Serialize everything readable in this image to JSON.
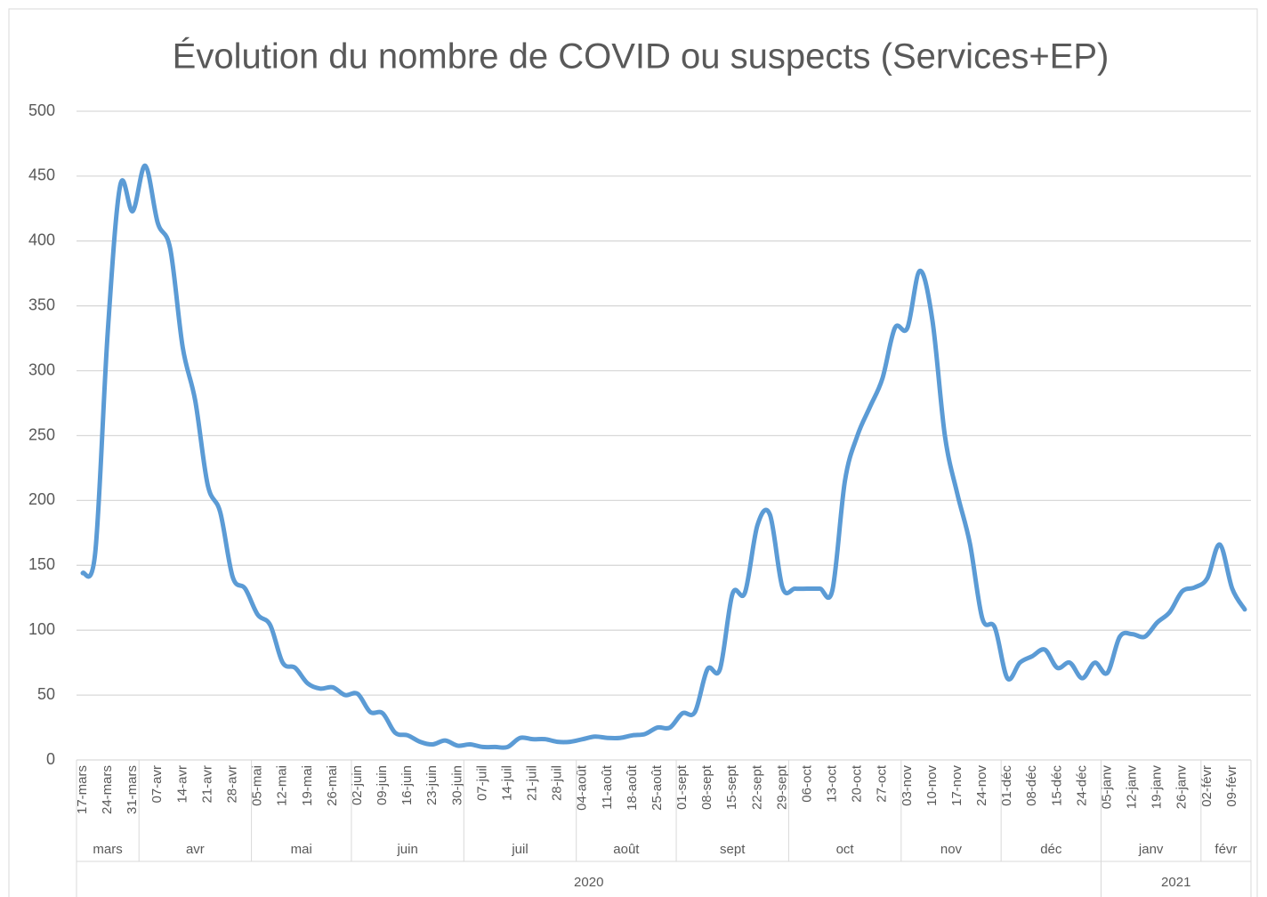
{
  "chart_data": {
    "type": "line",
    "title": "Évolution du nombre de COVID ou suspects (Services+EP)",
    "categories": [
      "17-mars",
      null,
      "24-mars",
      null,
      "31-mars",
      null,
      "07-avr",
      null,
      "14-avr",
      null,
      "21-avr",
      null,
      "28-avr",
      null,
      "05-mai",
      null,
      "12-mai",
      null,
      "19-mai",
      null,
      "26-mai",
      null,
      "02-juin",
      null,
      "09-juin",
      null,
      "16-juin",
      null,
      "23-juin",
      null,
      "30-juin",
      null,
      "07-juil",
      null,
      "14-juil",
      null,
      "21-juil",
      null,
      "28-juil",
      null,
      "04-août",
      null,
      "11-août",
      null,
      "18-août",
      null,
      "25-août",
      null,
      "01-sept",
      null,
      "08-sept",
      null,
      "15-sept",
      null,
      "22-sept",
      null,
      "29-sept",
      null,
      "06-oct",
      null,
      "13-oct",
      null,
      "20-oct",
      null,
      "27-oct",
      null,
      "03-nov",
      null,
      "10-nov",
      null,
      "17-nov",
      null,
      "24-nov",
      null,
      "01-déc",
      null,
      "08-déc",
      null,
      "15-déc",
      null,
      "24-déc",
      null,
      "05-janv",
      null,
      "12-janv",
      null,
      "19-janv",
      null,
      "26-janv",
      null,
      "02-févr",
      null,
      "09-févr",
      null
    ],
    "months": [
      {
        "label": "mars",
        "count": 5
      },
      {
        "label": "avr",
        "count": 9
      },
      {
        "label": "mai",
        "count": 8
      },
      {
        "label": "juin",
        "count": 9
      },
      {
        "label": "juil",
        "count": 9
      },
      {
        "label": "août",
        "count": 8
      },
      {
        "label": "sept",
        "count": 9
      },
      {
        "label": "oct",
        "count": 9
      },
      {
        "label": "nov",
        "count": 8
      },
      {
        "label": "déc",
        "count": 8
      },
      {
        "label": "janv",
        "count": 8
      },
      {
        "label": "févr",
        "count": 4
      }
    ],
    "years": [
      {
        "label": "2020",
        "count": 82
      },
      {
        "label": "2021",
        "count": 12
      }
    ],
    "series": [
      {
        "color": "#5b9bd5",
        "values": [
          144,
          160,
          330,
          443,
          423,
          458,
          414,
          394,
          318,
          277,
          212,
          191,
          141,
          132,
          112,
          104,
          75,
          71,
          59,
          55,
          56,
          50,
          51,
          37,
          36,
          21,
          19,
          14,
          12,
          15,
          11,
          12,
          10,
          10,
          10,
          17,
          16,
          16,
          14,
          14,
          16,
          18,
          17,
          17,
          19,
          20,
          25,
          25,
          36,
          37,
          70,
          70,
          128,
          129,
          181,
          189,
          133,
          132,
          132,
          132,
          131,
          215,
          250,
          272,
          294,
          333,
          333,
          377,
          339,
          250,
          205,
          167,
          109,
          102,
          63,
          75,
          80,
          85,
          71,
          75,
          63,
          75,
          67,
          95,
          97,
          95,
          106,
          114,
          130,
          133,
          140,
          166,
          132,
          116
        ]
      }
    ],
    "ylim": [
      0,
      500
    ],
    "yticks": [
      0,
      50,
      100,
      150,
      200,
      250,
      300,
      350,
      400,
      450,
      500
    ],
    "grid": true
  }
}
